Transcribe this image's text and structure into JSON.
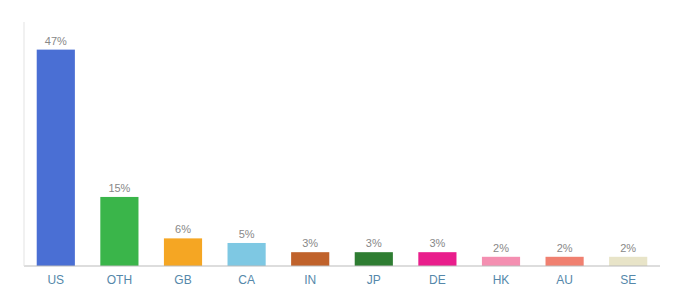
{
  "chart_data": {
    "type": "bar",
    "categories": [
      "US",
      "OTH",
      "GB",
      "CA",
      "IN",
      "JP",
      "DE",
      "HK",
      "AU",
      "SE"
    ],
    "values": [
      47,
      15,
      6,
      5,
      3,
      3,
      3,
      2,
      2,
      2
    ],
    "value_labels": [
      "47%",
      "15%",
      "6%",
      "5%",
      "3%",
      "3%",
      "3%",
      "2%",
      "2%",
      "2%"
    ],
    "colors": [
      "#4a6fd4",
      "#3ab54a",
      "#f5a623",
      "#7ec8e3",
      "#c0622b",
      "#2e7d32",
      "#e91e8c",
      "#f48fb1",
      "#f08070",
      "#e8e4c8"
    ],
    "ylim": [
      0,
      53
    ],
    "grid": false,
    "data_labels": true,
    "tick_labels": "x"
  }
}
